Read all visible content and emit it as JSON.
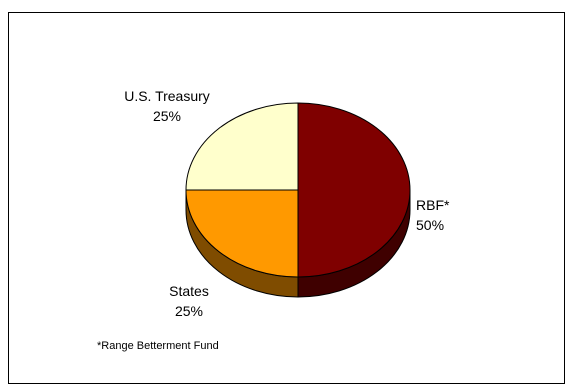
{
  "chart_data": {
    "type": "pie",
    "title": "",
    "style": "3d",
    "slices": [
      {
        "label": "RBF*",
        "value": 50,
        "percent_label": "50%",
        "color": "#7f0000",
        "side_color": "#3f0000"
      },
      {
        "label": "States",
        "value": 25,
        "percent_label": "25%",
        "color": "#ff9900",
        "side_color": "#7f4c00"
      },
      {
        "label": "U.S. Treasury",
        "value": 25,
        "percent_label": "25%",
        "color": "#ffffcc",
        "side_color": "#7f7f66"
      }
    ],
    "footnote": "*Range Betterment Fund"
  }
}
